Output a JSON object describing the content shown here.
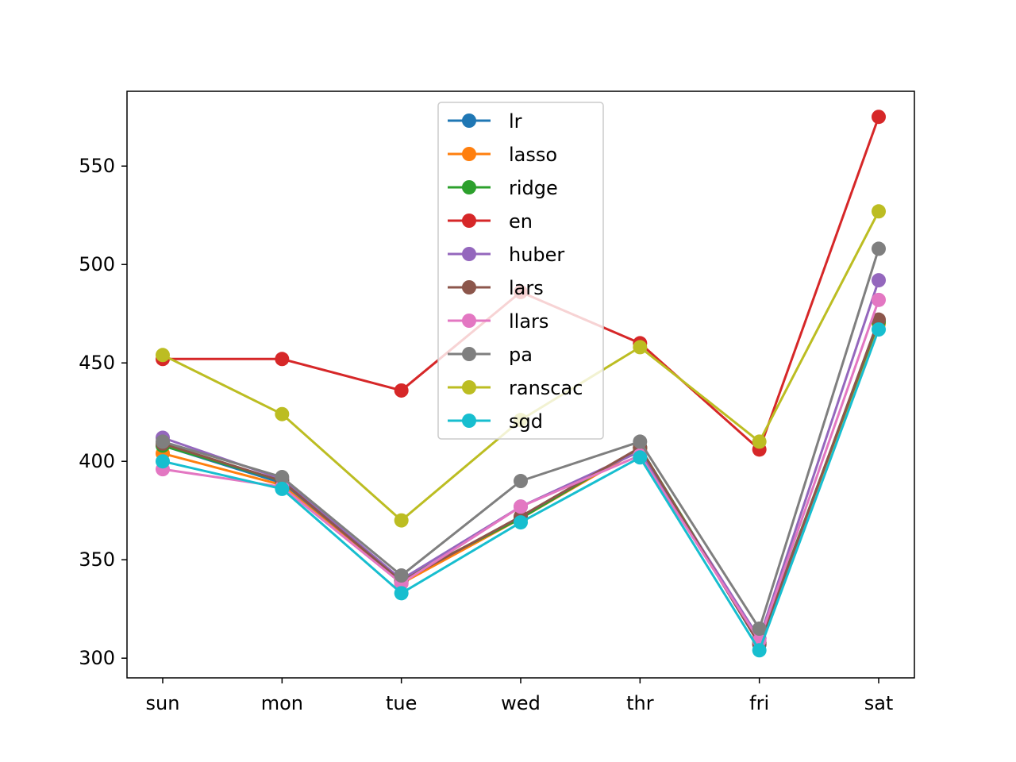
{
  "chart_data": {
    "type": "line",
    "title": "",
    "xlabel": "",
    "ylabel": "",
    "categories": [
      "sun",
      "mon",
      "tue",
      "wed",
      "thr",
      "fri",
      "sat"
    ],
    "ylim": [
      290,
      588
    ],
    "yticks": [
      300,
      350,
      400,
      450,
      500,
      550
    ],
    "grid": false,
    "legend_position": "upper-center",
    "series": [
      {
        "name": "lr",
        "color": "#1f77b4",
        "values": [
          408,
          389,
          339,
          371,
          407,
          307,
          471
        ]
      },
      {
        "name": "lasso",
        "color": "#ff7f0e",
        "values": [
          404,
          388,
          338,
          371,
          406,
          308,
          470
        ]
      },
      {
        "name": "ridge",
        "color": "#2ca02c",
        "values": [
          408,
          390,
          340,
          371,
          407,
          308,
          471
        ]
      },
      {
        "name": "en",
        "color": "#d62728",
        "values": [
          452,
          452,
          436,
          486,
          460,
          406,
          575
        ]
      },
      {
        "name": "huber",
        "color": "#9467bd",
        "values": [
          412,
          391,
          340,
          377,
          405,
          310,
          492
        ]
      },
      {
        "name": "lars",
        "color": "#8c564b",
        "values": [
          409,
          390,
          339,
          372,
          407,
          307,
          472
        ]
      },
      {
        "name": "llars",
        "color": "#e377c2",
        "values": [
          396,
          387,
          338,
          377,
          403,
          309,
          482
        ]
      },
      {
        "name": "pa",
        "color": "#7f7f7f",
        "values": [
          410,
          392,
          342,
          390,
          410,
          315,
          508
        ]
      },
      {
        "name": "ranscac",
        "color": "#bcbd22",
        "values": [
          454,
          424,
          370,
          421,
          458,
          410,
          527
        ]
      },
      {
        "name": "sgd",
        "color": "#17becf",
        "values": [
          400,
          386,
          333,
          369,
          402,
          304,
          467
        ]
      }
    ]
  }
}
